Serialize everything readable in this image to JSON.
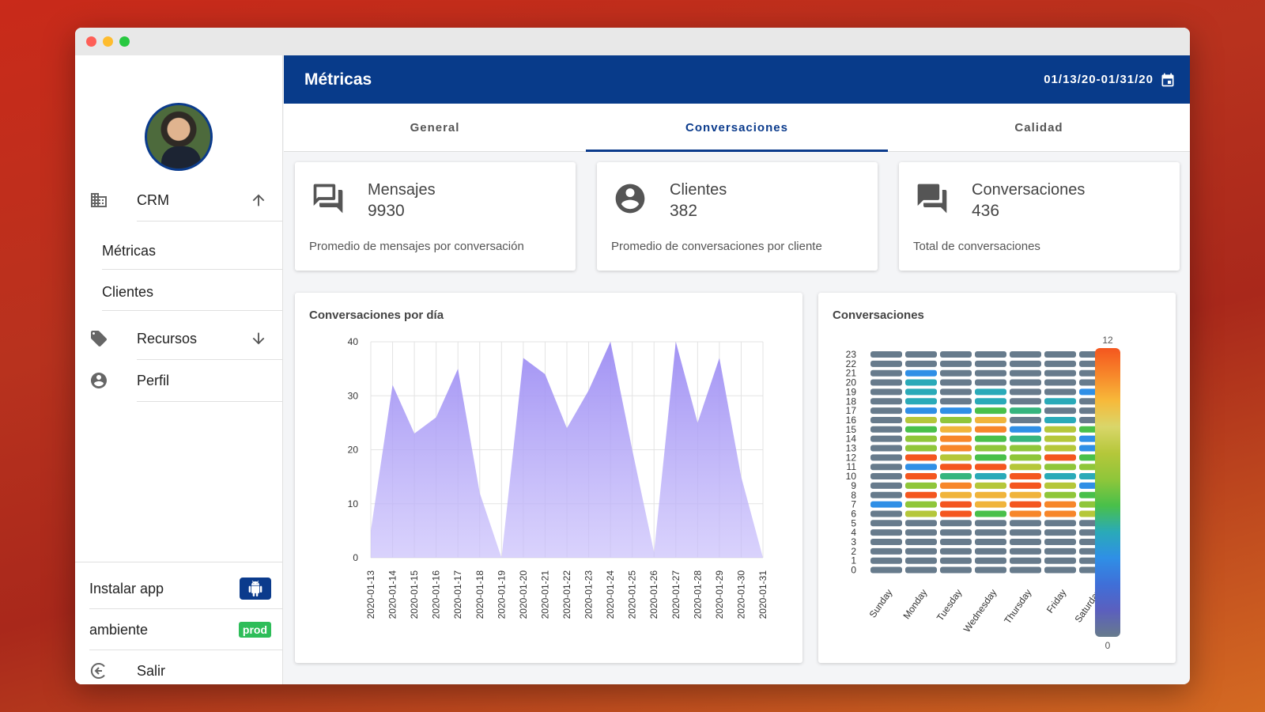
{
  "window": {
    "traffic_lights": [
      "close",
      "minimize",
      "zoom"
    ]
  },
  "sidebar": {
    "avatar_alt": "avatar",
    "crm": {
      "label": "CRM",
      "icon": "building-icon",
      "expanded": true
    },
    "crm_items": [
      "Métricas",
      "Clientes"
    ],
    "recursos": {
      "label": "Recursos",
      "icon": "tag-icon"
    },
    "perfil": {
      "label": "Perfil",
      "icon": "account-circle-icon"
    },
    "install_app": {
      "label": "Instalar app",
      "icon": "android-icon"
    },
    "ambiente": {
      "label": "ambiente",
      "badge": "prod"
    },
    "salir": {
      "label": "Salir",
      "icon": "logout-icon"
    }
  },
  "header": {
    "title": "Métricas",
    "date_range": "01/13/20-01/31/20"
  },
  "tabs": [
    {
      "label": "General",
      "active": false
    },
    {
      "label": "Conversaciones",
      "active": true
    },
    {
      "label": "Calidad",
      "active": false
    }
  ],
  "stats": [
    {
      "title": "Mensajes",
      "value": "9930",
      "desc": "Promedio de mensajes por conversación",
      "icon": "messages-icon"
    },
    {
      "title": "Clientes",
      "value": "382",
      "desc": "Promedio de conversaciones por cliente",
      "icon": "account-circle-icon"
    },
    {
      "title": "Conversaciones",
      "value": "436",
      "desc": "Total de conversaciones",
      "icon": "forum-icon"
    }
  ],
  "colors": {
    "accent": "#083b8a",
    "area_fill": "#a99af5",
    "badge_green": "#2ebd59"
  },
  "chart_data": [
    {
      "type": "area",
      "title": "Conversaciones por día",
      "x": [
        "2020-01-13",
        "2020-01-14",
        "2020-01-15",
        "2020-01-16",
        "2020-01-17",
        "2020-01-18",
        "2020-01-19",
        "2020-01-20",
        "2020-01-21",
        "2020-01-22",
        "2020-01-23",
        "2020-01-24",
        "2020-01-25",
        "2020-01-26",
        "2020-01-27",
        "2020-01-28",
        "2020-01-29",
        "2020-01-30",
        "2020-01-31"
      ],
      "values": [
        5,
        32,
        23,
        26,
        35,
        12,
        0,
        37,
        34,
        24,
        31,
        40,
        20,
        1,
        40,
        25,
        37,
        15,
        0
      ],
      "ylim": [
        0,
        40
      ],
      "yticks": [
        0,
        10,
        20,
        30,
        40
      ],
      "grid": true
    },
    {
      "type": "heatmap",
      "title": "Conversaciones",
      "columns": [
        "Sunday",
        "Monday",
        "Tuesday",
        "Wednesday",
        "Thursday",
        "Friday",
        "Saturday"
      ],
      "rows": [
        23,
        22,
        21,
        20,
        19,
        18,
        17,
        16,
        15,
        14,
        13,
        12,
        11,
        10,
        9,
        8,
        7,
        6,
        5,
        4,
        3,
        2,
        1,
        0
      ],
      "values": [
        [
          0,
          0,
          0,
          0,
          0,
          0,
          0
        ],
        [
          0,
          0,
          0,
          0,
          0,
          0,
          0
        ],
        [
          0,
          3,
          0,
          0,
          0,
          0,
          0
        ],
        [
          0,
          4,
          0,
          0,
          0,
          0,
          0
        ],
        [
          0,
          4,
          0,
          4,
          0,
          0,
          3
        ],
        [
          0,
          4,
          0,
          4,
          0,
          4,
          0
        ],
        [
          0,
          3,
          3,
          6,
          5,
          0,
          0
        ],
        [
          0,
          8,
          7,
          9,
          0,
          4,
          0
        ],
        [
          0,
          6,
          9,
          10,
          3,
          8,
          6
        ],
        [
          0,
          7,
          10,
          6,
          5,
          8,
          3
        ],
        [
          0,
          7,
          10,
          7,
          7,
          8,
          3
        ],
        [
          0,
          11,
          8,
          6,
          7,
          11,
          6
        ],
        [
          0,
          3,
          11,
          11,
          8,
          7,
          7
        ],
        [
          0,
          11,
          5,
          4,
          11,
          4,
          4
        ],
        [
          0,
          7,
          10,
          8,
          11,
          8,
          3
        ],
        [
          0,
          11,
          9,
          9,
          9,
          7,
          6
        ],
        [
          3,
          7,
          11,
          9,
          11,
          10,
          7
        ],
        [
          0,
          8,
          11,
          6,
          10,
          10,
          8
        ],
        [
          0,
          0,
          0,
          0,
          0,
          0,
          0
        ],
        [
          0,
          0,
          0,
          0,
          0,
          0,
          0
        ],
        [
          0,
          0,
          0,
          0,
          0,
          0,
          0
        ],
        [
          0,
          0,
          0,
          0,
          0,
          0,
          0
        ],
        [
          0,
          0,
          0,
          0,
          0,
          0,
          0
        ],
        [
          0,
          0,
          0,
          0,
          0,
          0,
          0
        ]
      ],
      "scale": {
        "min": 0,
        "max": 12,
        "min_label": "0",
        "max_label": "12"
      }
    }
  ]
}
